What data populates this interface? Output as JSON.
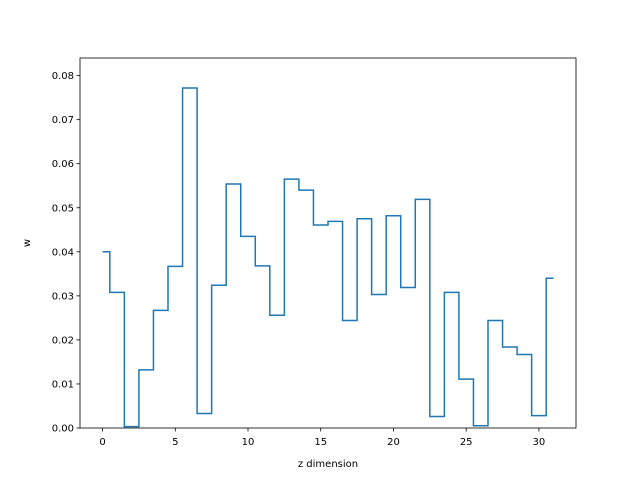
{
  "chart_data": {
    "type": "line",
    "drawstyle": "steps-mid",
    "title": "",
    "xlabel": "z dimension",
    "ylabel": "w",
    "xlim": [
      -1.55,
      32.55
    ],
    "ylim": [
      0,
      0.084
    ],
    "grid": false,
    "x_ticks": [
      0,
      5,
      10,
      15,
      20,
      25,
      30
    ],
    "x_tick_labels": [
      "0",
      "5",
      "10",
      "15",
      "20",
      "25",
      "30"
    ],
    "y_ticks": [
      0,
      0.01,
      0.02,
      0.03,
      0.04,
      0.05,
      0.06,
      0.07,
      0.08
    ],
    "y_tick_labels": [
      "0.00",
      "0.01",
      "0.02",
      "0.03",
      "0.04",
      "0.05",
      "0.06",
      "0.07",
      "0.08"
    ],
    "series": [
      {
        "color": "#1f77b4",
        "x": [
          0,
          1,
          2,
          3,
          4,
          5,
          6,
          7,
          8,
          9,
          10,
          11,
          12,
          13,
          14,
          15,
          16,
          17,
          18,
          19,
          20,
          21,
          22,
          23,
          24,
          25,
          26,
          27,
          28,
          29,
          30,
          31
        ],
        "values": [
          0.04,
          0.0308,
          0.0003,
          0.0132,
          0.0267,
          0.0367,
          0.0772,
          0.0033,
          0.0324,
          0.0554,
          0.0435,
          0.0368,
          0.0256,
          0.0565,
          0.054,
          0.0461,
          0.0469,
          0.0244,
          0.0475,
          0.0303,
          0.0482,
          0.0319,
          0.0519,
          0.0026,
          0.0308,
          0.0111,
          0.0005,
          0.0244,
          0.0184,
          0.0167,
          0.0028,
          0.034
        ]
      }
    ]
  }
}
